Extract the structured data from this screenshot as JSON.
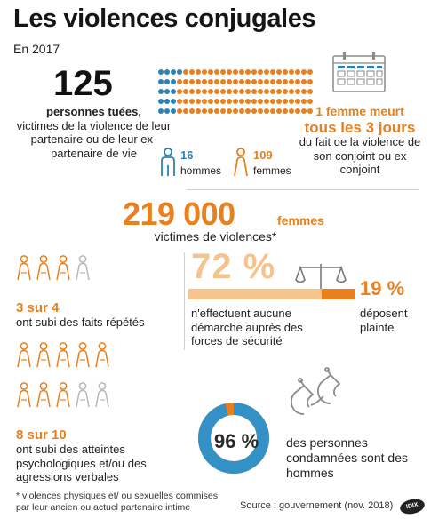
{
  "title": "Les violences conjugales",
  "subtitle": "En 2017",
  "killed": {
    "count": "125",
    "bold_label": "personnes tuées,",
    "description": "victimes de la violence de leur partenaire ou de leur ex-partenaire de vie",
    "men_count": "16",
    "men_label": "hommes",
    "women_count": "109",
    "women_label": "femmes",
    "men_dots": 16,
    "women_dots": 109
  },
  "frequency": {
    "line1": "1 femme meurt",
    "line2": "tous les 3 jours",
    "description": "du fait de la violence de son conjoint ou ex conjoint"
  },
  "victims": {
    "count": "219 000",
    "unit": "femmes",
    "label": "victimes de violences*"
  },
  "repeated": {
    "fraction": "3 sur 4",
    "text": "ont subi des faits répétés",
    "filled": 3,
    "total": 4
  },
  "psychological": {
    "fraction": "8 sur 10",
    "text": "ont subi des atteintes psychologiques et/ou des agressions verbales",
    "filled": 8,
    "total": 10
  },
  "complaints": {
    "no_action_pct": "72 %",
    "no_action_text": "n'effectuent aucune démarche auprès des forces de sécurité",
    "complaint_pct": "19 %",
    "complaint_text": "déposent plainte",
    "no_action_value": 72,
    "complaint_value": 19
  },
  "convicted": {
    "pct": "96 %",
    "text": "des personnes condamnées sont des hommes",
    "value": 96
  },
  "footnote": "* violences physiques et/ ou sexuelles commises par leur ancien ou actuel partenaire intime",
  "source": "Source : gouvernement (nov. 2018)",
  "logo_text": "IDIX",
  "colors": {
    "orange": "#e8801e",
    "light_orange": "#f5c48e",
    "blue": "#2d82b5",
    "gray_figure": "#b8b8b8",
    "donut_track": "#3391c6"
  },
  "icons": [
    "male-figure-icon",
    "female-figure-icon",
    "calendar-icon",
    "scales-of-justice-icon",
    "handcuffs-icon",
    "person-figure-icon"
  ]
}
